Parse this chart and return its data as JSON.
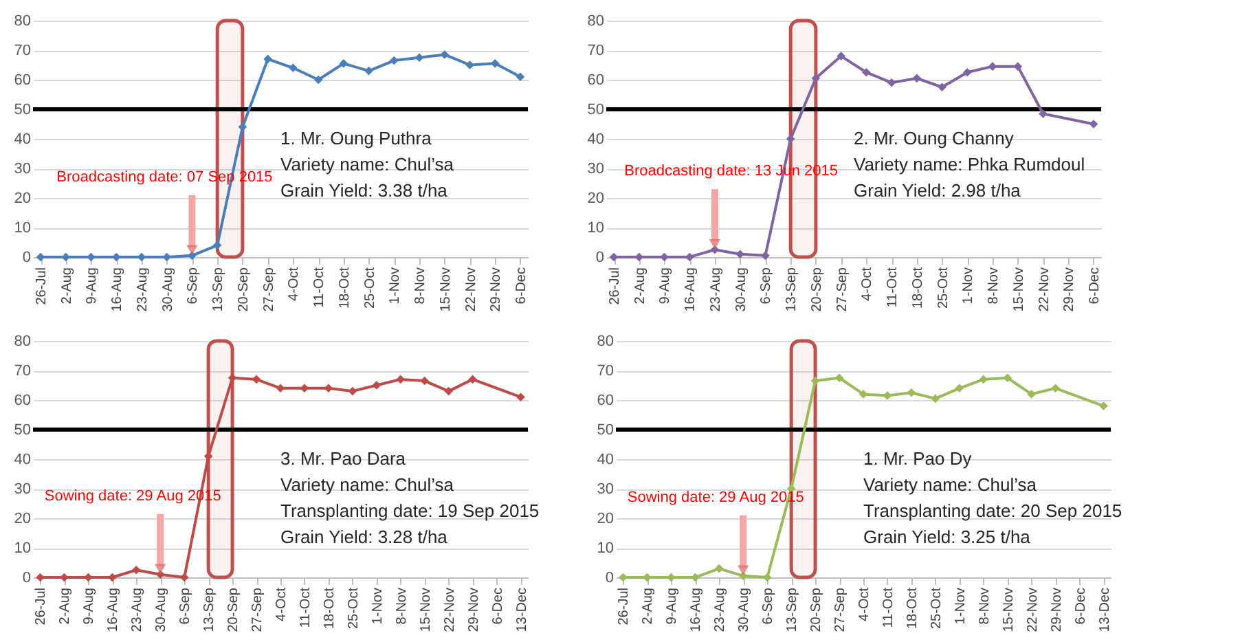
{
  "chart_data": [
    {
      "type": "line",
      "categories": [
        "26-Jul",
        "2-Aug",
        "9-Aug",
        "16-Aug",
        "23-Aug",
        "30-Aug",
        "6-Sep",
        "13-Sep",
        "20-Sep",
        "27-Sep",
        "4-Oct",
        "11-Oct",
        "18-Oct",
        "25-Oct",
        "1-Nov",
        "8-Nov",
        "15-Nov",
        "22-Nov",
        "29-Nov",
        "6-Dec"
      ],
      "series": [
        {
          "color": "#4a7ebb",
          "values": [
            0,
            0,
            0,
            0,
            0,
            0,
            0.5,
            4,
            44,
            67,
            64,
            60,
            65.5,
            63,
            66.5,
            67.5,
            68.5,
            65,
            65.5,
            61
          ]
        }
      ],
      "ylim": [
        0,
        80
      ],
      "yticks": [
        0,
        10,
        20,
        30,
        40,
        50,
        60,
        70,
        80
      ],
      "grid": "y",
      "marker": "diamond",
      "ref_lines": [
        {
          "axis": "y",
          "value": 50,
          "color": "#000000"
        }
      ],
      "bands": [
        {
          "axis": "x",
          "from": "13-Sep",
          "to": "20-Sep",
          "color": "#c0504d"
        }
      ],
      "annotations": [
        {
          "text": "Broadcasting date: 07 Sep 2015",
          "x": "6-Sep",
          "y": 0.5
        },
        "1. Mr. Oung Puthra",
        "Variety name:  Chul’sa",
        "Grain Yield: 3.38 t/ha"
      ]
    },
    {
      "type": "line",
      "categories": [
        "26-Jul",
        "2-Aug",
        "9-Aug",
        "16-Aug",
        "23-Aug",
        "30-Aug",
        "6-Sep",
        "13-Sep",
        "20-Sep",
        "27-Sep",
        "4-Oct",
        "11-Oct",
        "18-Oct",
        "25-Oct",
        "1-Nov",
        "8-Nov",
        "15-Nov",
        "22-Nov",
        "29-Nov",
        "6-Dec"
      ],
      "series": [
        {
          "color": "#8064a2",
          "values": [
            0,
            0,
            0,
            0,
            2.5,
            1,
            0.5,
            40,
            60.5,
            68,
            62.5,
            59,
            60.5,
            57.5,
            62.5,
            64.5,
            64.5,
            48.5,
            null,
            45
          ]
        }
      ],
      "ylim": [
        0,
        80
      ],
      "yticks": [
        0,
        10,
        20,
        30,
        40,
        50,
        60,
        70,
        80
      ],
      "grid": "y",
      "marker": "diamond",
      "ref_lines": [
        {
          "axis": "y",
          "value": 50,
          "color": "#000000"
        }
      ],
      "bands": [
        {
          "axis": "x",
          "from": "13-Sep",
          "to": "20-Sep",
          "color": "#c0504d"
        }
      ],
      "annotations": [
        {
          "text": "Broadcasting  date: 13 Jun 2015",
          "x": "23-Aug",
          "y": 2.5
        },
        "2. Mr. Oung Channy",
        "Variety name:  Phka Rumdoul",
        "Grain Yield: 2.98 t/ha"
      ]
    },
    {
      "type": "line",
      "categories": [
        "26-Jul",
        "2-Aug",
        "9-Aug",
        "16-Aug",
        "23-Aug",
        "30-Aug",
        "6-Sep",
        "13-Sep",
        "20-Sep",
        "27-Sep",
        "4-Oct",
        "11-Oct",
        "18-Oct",
        "25-Oct",
        "1-Nov",
        "8-Nov",
        "15-Nov",
        "22-Nov",
        "29-Nov",
        "6-Dec",
        "13-Dec"
      ],
      "series": [
        {
          "color": "#be4b48",
          "values": [
            0,
            0,
            0,
            0,
            2.5,
            1,
            0,
            41,
            67.5,
            67,
            64,
            64,
            64,
            63,
            65,
            67,
            66.5,
            63,
            67,
            null,
            61
          ]
        }
      ],
      "ylim": [
        0,
        80
      ],
      "yticks": [
        0,
        10,
        20,
        30,
        40,
        50,
        60,
        70,
        80
      ],
      "grid": "y",
      "marker": "diamond",
      "ref_lines": [
        {
          "axis": "y",
          "value": 50,
          "color": "#000000"
        }
      ],
      "bands": [
        {
          "axis": "x",
          "from": "13-Sep",
          "to": "20-Sep",
          "color": "#c0504d"
        }
      ],
      "annotations": [
        {
          "text": "Sowing date: 29 Aug 2015",
          "x": "30-Aug",
          "y": 1
        },
        "3. Mr. Pao Dara",
        "Variety name:  Chul’sa",
        "Transplanting date: 19 Sep 2015",
        "Grain Yield: 3.28 t/ha"
      ]
    },
    {
      "type": "line",
      "categories": [
        "26-Jul",
        "2-Aug",
        "9-Aug",
        "16-Aug",
        "23-Aug",
        "30-Aug",
        "6-Sep",
        "13-Sep",
        "20-Sep",
        "27-Sep",
        "4-Oct",
        "11-Oct",
        "18-Oct",
        "25-Oct",
        "1-Nov",
        "8-Nov",
        "15-Nov",
        "22-Nov",
        "29-Nov",
        "6-Dec",
        "13-Dec"
      ],
      "series": [
        {
          "color": "#9bbb59",
          "values": [
            0,
            0,
            0,
            0,
            3,
            0.5,
            0,
            30,
            66.5,
            67.5,
            62,
            61.5,
            62.5,
            60.5,
            64,
            67,
            67.5,
            62,
            64,
            null,
            58
          ]
        }
      ],
      "ylim": [
        0,
        80
      ],
      "yticks": [
        0,
        10,
        20,
        30,
        40,
        50,
        60,
        70,
        80
      ],
      "grid": "y",
      "marker": "diamond",
      "ref_lines": [
        {
          "axis": "y",
          "value": 50,
          "color": "#000000"
        }
      ],
      "bands": [
        {
          "axis": "x",
          "from": "13-Sep",
          "to": "20-Sep",
          "color": "#c0504d"
        }
      ],
      "annotations": [
        {
          "text": "Sowing date: 29 Aug 2015",
          "x": "30-Aug",
          "y": 0.5
        },
        "1. Mr. Pao Dy",
        "Variety name:  Chul’sa",
        "Transplanting date: 20 Sep 2015",
        "Grain Yield: 3.25 t/ha"
      ]
    }
  ]
}
